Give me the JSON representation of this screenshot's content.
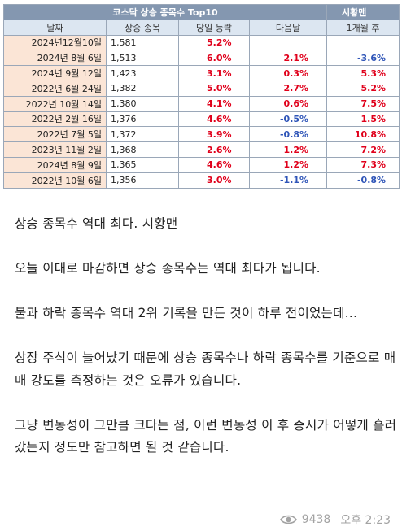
{
  "table": {
    "title": "코스닥 상승 종목수 Top10",
    "tag": "시황맨",
    "headers": [
      "날짜",
      "상승 종목",
      "당일 등락",
      "다음날",
      "1개월 후"
    ],
    "rows": [
      {
        "date": "2024년12월10일",
        "count": "1,581",
        "day": "5.2%",
        "next": "",
        "month": ""
      },
      {
        "date": "2024년 8월 6일",
        "count": "1,513",
        "day": "6.0%",
        "next": "2.1%",
        "month": "-3.6%"
      },
      {
        "date": "2024년 9월 12일",
        "count": "1,423",
        "day": "3.1%",
        "next": "0.3%",
        "month": "5.3%"
      },
      {
        "date": "2022년 6월 24일",
        "count": "1,382",
        "day": "5.0%",
        "next": "2.7%",
        "month": "5.2%"
      },
      {
        "date": "2022년 10월 14일",
        "count": "1,380",
        "day": "4.1%",
        "next": "0.6%",
        "month": "7.5%"
      },
      {
        "date": "2022년 2월 16일",
        "count": "1,376",
        "day": "4.6%",
        "next": "-0.5%",
        "month": "1.5%"
      },
      {
        "date": "2022년 7월 5일",
        "count": "1,372",
        "day": "3.9%",
        "next": "-0.8%",
        "month": "10.8%"
      },
      {
        "date": "2023년 11월 2일",
        "count": "1,368",
        "day": "2.6%",
        "next": "1.2%",
        "month": "7.2%"
      },
      {
        "date": "2024년 8월 9일",
        "count": "1,365",
        "day": "4.6%",
        "next": "1.2%",
        "month": "7.3%"
      },
      {
        "date": "2022년 10월 6일",
        "count": "1,356",
        "day": "3.0%",
        "next": "-1.1%",
        "month": "-0.8%"
      }
    ]
  },
  "message": {
    "paragraphs": [
      "상승 종목수 역대 최다. 시황맨",
      "오늘 이대로 마감하면 상승 종목수는 역대 최다가 됩니다.",
      "불과 하락 종목수 역대 2위 기록을 만든 것이 하루 전이었는데...",
      "상장 주식이 늘어났기 때문에 상승 종목수나 하락 종목수를 기준으로 매매 강도를 측정하는 것은 오류가 있습니다.",
      "그냥 변동성이 그만큼 크다는 점, 이런 변동성 이 후 증시가 어떻게 흘러갔는지 정도만 참고하면 될 것 같습니다."
    ],
    "views": "9438",
    "time": "오후 2:23"
  },
  "icons": {
    "views": "eye-icon"
  }
}
